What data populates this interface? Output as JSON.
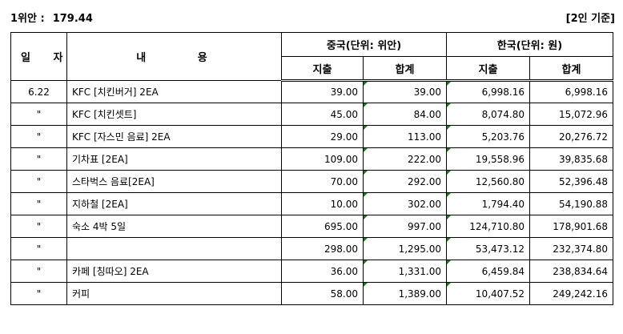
{
  "header": {
    "rate_label": "1위안 :",
    "rate_value": "179.44",
    "basis": "[2인 기준]"
  },
  "columns": {
    "date": "일 자",
    "content": "내 용",
    "china_group": "중국(단위: 위안)",
    "korea_group": "한국(단위: 원)",
    "expense": "지출",
    "total": "합계"
  },
  "rows": [
    {
      "date": "6.22",
      "desc": "KFC [치킨버거] 2EA",
      "cny_exp": "39.00",
      "cny_sum": "39.00",
      "krw_exp": "6,998.16",
      "krw_sum": "6,998.16"
    },
    {
      "date": "\"",
      "desc": "KFC [치킨셋트]",
      "cny_exp": "45.00",
      "cny_sum": "84.00",
      "krw_exp": "8,074.80",
      "krw_sum": "15,072.96"
    },
    {
      "date": "\"",
      "desc": "KFC [자스민 음료] 2EA",
      "cny_exp": "29.00",
      "cny_sum": "113.00",
      "krw_exp": "5,203.76",
      "krw_sum": "20,276.72"
    },
    {
      "date": "\"",
      "desc": "기차표 [2EA]",
      "cny_exp": "109.00",
      "cny_sum": "222.00",
      "krw_exp": "19,558.96",
      "krw_sum": "39,835.68"
    },
    {
      "date": "\"",
      "desc": "스타벅스 음료[2EA]",
      "cny_exp": "70.00",
      "cny_sum": "292.00",
      "krw_exp": "12,560.80",
      "krw_sum": "52,396.48"
    },
    {
      "date": "\"",
      "desc": "지하철 [2EA]",
      "cny_exp": "10.00",
      "cny_sum": "302.00",
      "krw_exp": "1,794.40",
      "krw_sum": "54,190.88"
    },
    {
      "date": "\"",
      "desc": "숙소 4박 5일",
      "cny_exp": "695.00",
      "cny_sum": "997.00",
      "krw_exp": "124,710.80",
      "krw_sum": "178,901.68"
    },
    {
      "date": "\"",
      "desc": "",
      "cny_exp": "298.00",
      "cny_sum": "1,295.00",
      "krw_exp": "53,473.12",
      "krw_sum": "232,374.80"
    },
    {
      "date": "\"",
      "desc": "카페 [칭따오] 2EA",
      "cny_exp": "36.00",
      "cny_sum": "1,331.00",
      "krw_exp": "6,459.84",
      "krw_sum": "238,834.64"
    },
    {
      "date": "\"",
      "desc": "커피",
      "cny_exp": "58.00",
      "cny_sum": "1,389.00",
      "krw_exp": "10,407.52",
      "krw_sum": "249,242.16"
    }
  ]
}
